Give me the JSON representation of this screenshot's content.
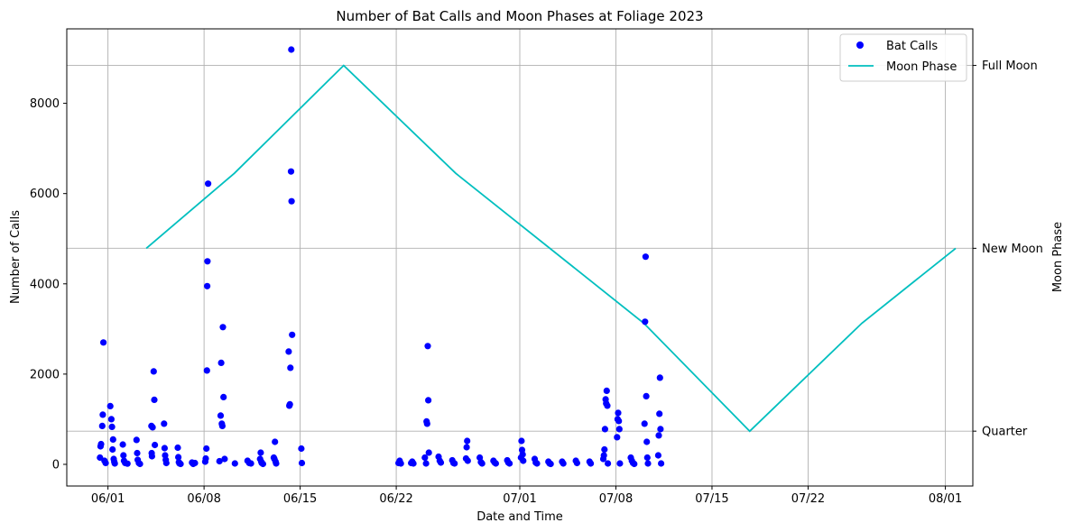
{
  "chart_data": {
    "type": "scatter",
    "title": "Number of Bat Calls and Moon Phases at Foliage 2023",
    "xlabel": "Date and Time",
    "ylabel": "Number of Calls",
    "y2label": "Moon Phase",
    "x_axis": "date (2023)",
    "xlim": [
      "2023-05-29T00:00",
      "2023-08-03T00:00"
    ],
    "ylim": [
      -480,
      9650
    ],
    "yticks": [
      0,
      2000,
      4000,
      6000,
      8000
    ],
    "xticks": [
      {
        "date": "2023-06-01",
        "label": "06/01"
      },
      {
        "date": "2023-06-08",
        "label": "06/08"
      },
      {
        "date": "2023-06-15",
        "label": "06/15"
      },
      {
        "date": "2023-06-22",
        "label": "06/22"
      },
      {
        "date": "2023-07-01",
        "label": "07/01"
      },
      {
        "date": "2023-07-08",
        "label": "07/08"
      },
      {
        "date": "2023-07-15",
        "label": "07/15"
      },
      {
        "date": "2023-07-22",
        "label": "07/22"
      },
      {
        "date": "2023-08-01",
        "label": "08/01"
      }
    ],
    "moon_ticks": [
      "Full Moon",
      "New Moon",
      "Quarter"
    ],
    "grid": true,
    "legend_position": "top-right",
    "colors": {
      "bat_calls": "#0000ff",
      "moon_phase": "#00bfbf",
      "grid": "#b0b0b0"
    },
    "series": [
      {
        "name": "Bat Calls",
        "kind": "scatter",
        "points": [
          [
            "2023-05-31T10:00",
            150
          ],
          [
            "2023-05-31T11:00",
            400
          ],
          [
            "2023-05-31T12:00",
            450
          ],
          [
            "2023-05-31T14:00",
            850
          ],
          [
            "2023-05-31T15:00",
            1100
          ],
          [
            "2023-05-31T16:00",
            2700
          ],
          [
            "2023-05-31T18:00",
            80
          ],
          [
            "2023-05-31T20:00",
            30
          ],
          [
            "2023-06-01T04:00",
            1290
          ],
          [
            "2023-06-01T06:00",
            1000
          ],
          [
            "2023-06-01T07:00",
            830
          ],
          [
            "2023-06-01T08:00",
            330
          ],
          [
            "2023-06-01T09:00",
            550
          ],
          [
            "2023-06-01T10:00",
            120
          ],
          [
            "2023-06-01T11:00",
            60
          ],
          [
            "2023-06-01T12:00",
            20
          ],
          [
            "2023-06-02T02:00",
            440
          ],
          [
            "2023-06-02T03:00",
            200
          ],
          [
            "2023-06-02T04:00",
            80
          ],
          [
            "2023-06-02T06:00",
            30
          ],
          [
            "2023-06-02T10:00",
            15
          ],
          [
            "2023-06-03T02:00",
            540
          ],
          [
            "2023-06-03T03:00",
            250
          ],
          [
            "2023-06-03T04:00",
            100
          ],
          [
            "2023-06-03T06:00",
            30
          ],
          [
            "2023-06-03T08:00",
            10
          ],
          [
            "2023-06-04T04:00",
            850
          ],
          [
            "2023-06-04T06:00",
            820
          ],
          [
            "2023-06-04T08:00",
            2060
          ],
          [
            "2023-06-04T09:00",
            1430
          ],
          [
            "2023-06-04T10:00",
            430
          ],
          [
            "2023-06-04T04:30",
            250
          ],
          [
            "2023-06-04T05:00",
            180
          ],
          [
            "2023-06-05T02:00",
            900
          ],
          [
            "2023-06-05T03:00",
            360
          ],
          [
            "2023-06-05T04:00",
            200
          ],
          [
            "2023-06-05T05:00",
            100
          ],
          [
            "2023-06-05T06:00",
            30
          ],
          [
            "2023-06-06T02:00",
            370
          ],
          [
            "2023-06-06T03:00",
            160
          ],
          [
            "2023-06-06T04:00",
            50
          ],
          [
            "2023-06-06T05:00",
            20
          ],
          [
            "2023-06-06T07:00",
            10
          ],
          [
            "2023-06-07T03:00",
            40
          ],
          [
            "2023-06-07T05:00",
            10
          ],
          [
            "2023-06-07T08:00",
            30
          ],
          [
            "2023-06-08T02:00",
            60
          ],
          [
            "2023-06-08T03:00",
            130
          ],
          [
            "2023-06-08T04:00",
            350
          ],
          [
            "2023-06-08T05:00",
            2080
          ],
          [
            "2023-06-08T05:30",
            3950
          ],
          [
            "2023-06-08T06:00",
            4500
          ],
          [
            "2023-06-08T07:00",
            6220
          ],
          [
            "2023-06-09T03:00",
            70
          ],
          [
            "2023-06-09T05:00",
            1080
          ],
          [
            "2023-06-09T06:00",
            2250
          ],
          [
            "2023-06-09T07:00",
            900
          ],
          [
            "2023-06-09T08:00",
            850
          ],
          [
            "2023-06-09T09:00",
            3040
          ],
          [
            "2023-06-09T10:00",
            1490
          ],
          [
            "2023-06-09T12:00",
            120
          ],
          [
            "2023-06-10T06:00",
            20
          ],
          [
            "2023-06-11T04:00",
            80
          ],
          [
            "2023-06-11T07:00",
            30
          ],
          [
            "2023-06-11T10:00",
            20
          ],
          [
            "2023-06-12T02:00",
            120
          ],
          [
            "2023-06-12T03:00",
            260
          ],
          [
            "2023-06-12T04:00",
            60
          ],
          [
            "2023-06-12T05:00",
            30
          ],
          [
            "2023-06-12T07:00",
            10
          ],
          [
            "2023-06-13T02:00",
            150
          ],
          [
            "2023-06-13T04:00",
            500
          ],
          [
            "2023-06-13T05:00",
            60
          ],
          [
            "2023-06-13T06:00",
            20
          ],
          [
            "2023-06-13T03:00",
            120
          ],
          [
            "2023-06-14T04:00",
            2500
          ],
          [
            "2023-06-14T05:00",
            1300
          ],
          [
            "2023-06-14T06:00",
            1330
          ],
          [
            "2023-06-14T07:00",
            2140
          ],
          [
            "2023-06-14T08:00",
            6490
          ],
          [
            "2023-06-14T08:30",
            9190
          ],
          [
            "2023-06-14T09:00",
            5830
          ],
          [
            "2023-06-14T10:00",
            2870
          ],
          [
            "2023-06-15T02:00",
            350
          ],
          [
            "2023-06-15T03:00",
            30
          ],
          [
            "2023-06-22T04:00",
            30
          ],
          [
            "2023-06-22T06:00",
            80
          ],
          [
            "2023-06-22T08:00",
            20
          ],
          [
            "2023-06-23T02:00",
            30
          ],
          [
            "2023-06-23T04:00",
            60
          ],
          [
            "2023-06-23T06:00",
            20
          ],
          [
            "2023-06-24T02:00",
            150
          ],
          [
            "2023-06-24T04:00",
            20
          ],
          [
            "2023-06-24T05:00",
            950
          ],
          [
            "2023-06-24T06:00",
            900
          ],
          [
            "2023-06-24T07:00",
            2620
          ],
          [
            "2023-06-24T08:00",
            1420
          ],
          [
            "2023-06-24T09:00",
            260
          ],
          [
            "2023-06-25T02:00",
            170
          ],
          [
            "2023-06-25T04:00",
            80
          ],
          [
            "2023-06-25T06:00",
            40
          ],
          [
            "2023-06-26T02:00",
            90
          ],
          [
            "2023-06-26T04:00",
            30
          ],
          [
            "2023-06-26T06:00",
            20
          ],
          [
            "2023-06-27T02:00",
            130
          ],
          [
            "2023-06-27T03:00",
            380
          ],
          [
            "2023-06-27T04:00",
            520
          ],
          [
            "2023-06-27T05:00",
            80
          ],
          [
            "2023-06-28T02:00",
            150
          ],
          [
            "2023-06-28T04:00",
            50
          ],
          [
            "2023-06-28T06:00",
            20
          ],
          [
            "2023-06-29T02:00",
            80
          ],
          [
            "2023-06-29T04:00",
            40
          ],
          [
            "2023-06-29T06:00",
            20
          ],
          [
            "2023-06-30T02:00",
            90
          ],
          [
            "2023-06-30T04:00",
            40
          ],
          [
            "2023-06-30T06:00",
            20
          ],
          [
            "2023-07-01T02:00",
            150
          ],
          [
            "2023-07-01T03:00",
            520
          ],
          [
            "2023-07-01T04:00",
            320
          ],
          [
            "2023-07-01T05:00",
            220
          ],
          [
            "2023-07-01T06:00",
            80
          ],
          [
            "2023-07-02T02:00",
            120
          ],
          [
            "2023-07-02T04:00",
            40
          ],
          [
            "2023-07-02T06:00",
            20
          ],
          [
            "2023-07-03T02:00",
            60
          ],
          [
            "2023-07-03T04:00",
            20
          ],
          [
            "2023-07-03T06:00",
            10
          ],
          [
            "2023-07-04T02:00",
            60
          ],
          [
            "2023-07-04T04:00",
            20
          ],
          [
            "2023-07-05T02:00",
            80
          ],
          [
            "2023-07-05T04:00",
            30
          ],
          [
            "2023-07-06T02:00",
            60
          ],
          [
            "2023-07-06T04:00",
            20
          ],
          [
            "2023-07-07T02:00",
            120
          ],
          [
            "2023-07-07T03:00",
            200
          ],
          [
            "2023-07-07T04:00",
            330
          ],
          [
            "2023-07-07T05:00",
            780
          ],
          [
            "2023-07-07T06:00",
            1440
          ],
          [
            "2023-07-07T07:00",
            1350
          ],
          [
            "2023-07-07T08:00",
            1630
          ],
          [
            "2023-07-07T09:00",
            1300
          ],
          [
            "2023-07-07T10:00",
            20
          ],
          [
            "2023-07-08T02:00",
            600
          ],
          [
            "2023-07-08T03:00",
            1000
          ],
          [
            "2023-07-08T04:00",
            1140
          ],
          [
            "2023-07-08T05:00",
            960
          ],
          [
            "2023-07-08T06:00",
            780
          ],
          [
            "2023-07-08T07:00",
            20
          ],
          [
            "2023-07-09T02:00",
            150
          ],
          [
            "2023-07-09T04:00",
            80
          ],
          [
            "2023-07-09T06:00",
            30
          ],
          [
            "2023-07-09T08:00",
            10
          ],
          [
            "2023-07-10T02:00",
            900
          ],
          [
            "2023-07-10T03:00",
            3160
          ],
          [
            "2023-07-10T04:00",
            4600
          ],
          [
            "2023-07-10T05:00",
            1510
          ],
          [
            "2023-07-10T06:00",
            500
          ],
          [
            "2023-07-10T07:00",
            150
          ],
          [
            "2023-07-10T08:00",
            20
          ],
          [
            "2023-07-11T02:00",
            200
          ],
          [
            "2023-07-11T03:00",
            640
          ],
          [
            "2023-07-11T04:00",
            1120
          ],
          [
            "2023-07-11T05:00",
            1920
          ],
          [
            "2023-07-11T06:00",
            780
          ],
          [
            "2023-07-11T07:00",
            20
          ]
        ]
      },
      {
        "name": "Moon Phase",
        "kind": "line",
        "points": [
          [
            "2023-06-03T19:00",
            "New Moon"
          ],
          [
            "2023-06-10T05:00",
            0.705
          ],
          [
            "2023-06-18T04:00",
            "Full Moon"
          ],
          [
            "2023-06-26T08:00",
            0.705
          ],
          [
            "2023-07-10T01:00",
            0.295
          ],
          [
            "2023-07-17T18:00",
            "Quarter"
          ],
          [
            "2023-07-25T22:00",
            0.295
          ],
          [
            "2023-08-01T18:00",
            "New Moon"
          ]
        ]
      }
    ]
  }
}
